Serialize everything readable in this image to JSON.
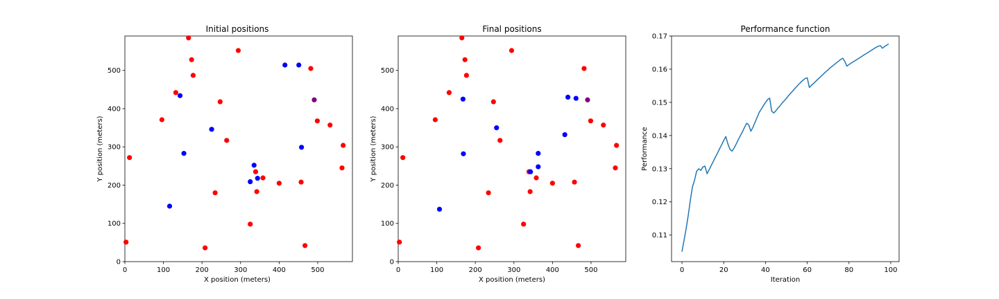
{
  "chart_data": [
    {
      "type": "scatter",
      "title": "Initial positions",
      "xlabel": "X position (meters)",
      "ylabel": "Y position (meters)",
      "xlim": [
        0,
        590
      ],
      "ylim": [
        0,
        590
      ],
      "xticks": [
        0,
        100,
        200,
        300,
        400,
        500
      ],
      "yticks": [
        0,
        100,
        200,
        300,
        400,
        500
      ],
      "grid": false,
      "colors": {
        "red": "#ff0000",
        "blue": "#0000ff",
        "purple": "#800080"
      },
      "series": [
        {
          "color": "red",
          "points": [
            [
              165,
              585
            ],
            [
              173,
              528
            ],
            [
              177,
              487
            ],
            [
              294,
              552
            ],
            [
              482,
              505
            ],
            [
              132,
              442
            ],
            [
              247,
              418
            ],
            [
              96,
              371
            ],
            [
              499,
              368
            ],
            [
              532,
              357
            ],
            [
              264,
              317
            ],
            [
              566,
              304
            ],
            [
              12,
              272
            ],
            [
              563,
              245
            ],
            [
              339,
              235
            ],
            [
              358,
              219
            ],
            [
              400,
              205
            ],
            [
              457,
              208
            ],
            [
              234,
              180
            ],
            [
              342,
              183
            ],
            [
              325,
              98
            ],
            [
              3,
              51
            ],
            [
              208,
              36
            ],
            [
              467,
              42
            ]
          ]
        },
        {
          "color": "blue",
          "points": [
            [
              415,
              514
            ],
            [
              451,
              514
            ],
            [
              143,
              434
            ],
            [
              225,
              346
            ],
            [
              458,
              299
            ],
            [
              153,
              283
            ],
            [
              335,
              252
            ],
            [
              344,
              218
            ],
            [
              325,
              209
            ],
            [
              116,
              145
            ]
          ]
        },
        {
          "color": "purple",
          "points": [
            [
              491,
              423
            ]
          ]
        }
      ]
    },
    {
      "type": "scatter",
      "title": "Final positions",
      "xlabel": "X position (meters)",
      "ylabel": "Y position (meters)",
      "xlim": [
        0,
        590
      ],
      "ylim": [
        0,
        590
      ],
      "xticks": [
        0,
        100,
        200,
        300,
        400,
        500
      ],
      "yticks": [
        0,
        100,
        200,
        300,
        400,
        500
      ],
      "grid": false,
      "colors": {
        "red": "#ff0000",
        "blue": "#0000ff",
        "purple": "#800080"
      },
      "series": [
        {
          "color": "red",
          "points": [
            [
              165,
              585
            ],
            [
              173,
              528
            ],
            [
              177,
              487
            ],
            [
              294,
              552
            ],
            [
              482,
              505
            ],
            [
              132,
              442
            ],
            [
              247,
              418
            ],
            [
              96,
              371
            ],
            [
              499,
              368
            ],
            [
              532,
              357
            ],
            [
              264,
              317
            ],
            [
              566,
              304
            ],
            [
              12,
              272
            ],
            [
              563,
              245
            ],
            [
              339,
              235
            ],
            [
              358,
              219
            ],
            [
              400,
              205
            ],
            [
              457,
              208
            ],
            [
              234,
              180
            ],
            [
              342,
              183
            ],
            [
              325,
              98
            ],
            [
              3,
              51
            ],
            [
              208,
              36
            ],
            [
              467,
              42
            ]
          ]
        },
        {
          "color": "blue",
          "points": [
            [
              168,
              425
            ],
            [
              440,
              430
            ],
            [
              461,
              427
            ],
            [
              255,
              350
            ],
            [
              432,
              332
            ],
            [
              169,
              282
            ],
            [
              363,
              283
            ],
            [
              363,
              248
            ],
            [
              343,
              235
            ],
            [
              107,
              137
            ]
          ]
        },
        {
          "color": "purple",
          "points": [
            [
              491,
              423
            ]
          ]
        }
      ]
    },
    {
      "type": "line",
      "title": "Performance function",
      "xlabel": "Iteration",
      "ylabel": "Performance",
      "xlim": [
        -5,
        104
      ],
      "ylim": [
        0.102,
        0.17
      ],
      "xticks": [
        0,
        20,
        40,
        60,
        80,
        100
      ],
      "yticks": [
        0.11,
        0.12,
        0.13,
        0.14,
        0.15,
        0.16,
        0.17
      ],
      "grid": false,
      "colors": {
        "line": "#1f77b4"
      },
      "series": [
        {
          "x": [
            0,
            1,
            2,
            3,
            4,
            5,
            6,
            7,
            8,
            9,
            10,
            11,
            12,
            13,
            14,
            15,
            16,
            17,
            18,
            19,
            20,
            21,
            22,
            23,
            24,
            25,
            26,
            27,
            28,
            29,
            30,
            31,
            32,
            33,
            34,
            35,
            36,
            37,
            38,
            39,
            40,
            41,
            42,
            43,
            44,
            45,
            46,
            47,
            48,
            49,
            50,
            51,
            52,
            53,
            54,
            55,
            56,
            57,
            58,
            59,
            60,
            61,
            62,
            63,
            64,
            65,
            66,
            67,
            68,
            69,
            70,
            71,
            72,
            73,
            74,
            75,
            76,
            77,
            78,
            79,
            80,
            81,
            82,
            83,
            84,
            85,
            86,
            87,
            88,
            89,
            90,
            91,
            92,
            93,
            94,
            95,
            96,
            97,
            98,
            99
          ],
          "y": [
            0.105,
            0.1085,
            0.112,
            0.116,
            0.1205,
            0.1245,
            0.1265,
            0.1292,
            0.13,
            0.1295,
            0.1305,
            0.1308,
            0.1285,
            0.1297,
            0.131,
            0.1322,
            0.1335,
            0.1347,
            0.136,
            0.1372,
            0.1385,
            0.1397,
            0.1375,
            0.1358,
            0.1353,
            0.1363,
            0.1375,
            0.1388,
            0.14,
            0.1412,
            0.1425,
            0.1437,
            0.1432,
            0.1413,
            0.1425,
            0.144,
            0.1455,
            0.147,
            0.148,
            0.149,
            0.15,
            0.1508,
            0.1513,
            0.1473,
            0.1468,
            0.1475,
            0.1483,
            0.149,
            0.1498,
            0.1505,
            0.1512,
            0.152,
            0.1527,
            0.1534,
            0.1541,
            0.1548,
            0.1555,
            0.1561,
            0.1567,
            0.1572,
            0.1574,
            0.1545,
            0.1551,
            0.1557,
            0.1563,
            0.1569,
            0.1575,
            0.1581,
            0.1587,
            0.1593,
            0.1598,
            0.1604,
            0.1609,
            0.1614,
            0.1619,
            0.1624,
            0.1629,
            0.1633,
            0.1623,
            0.1609,
            0.1614,
            0.1618,
            0.1622,
            0.1626,
            0.163,
            0.1634,
            0.1638,
            0.1642,
            0.1646,
            0.165,
            0.1654,
            0.1658,
            0.1662,
            0.1666,
            0.1669,
            0.1671,
            0.1663,
            0.1668,
            0.1672,
            0.1676
          ]
        }
      ]
    }
  ]
}
